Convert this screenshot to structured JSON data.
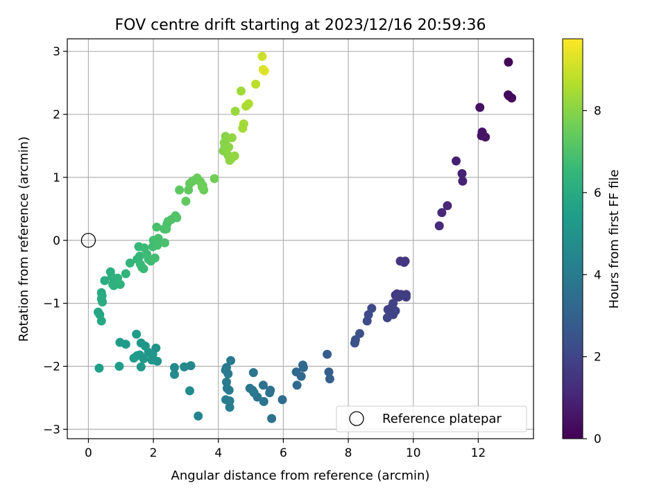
{
  "chart_data": {
    "type": "scatter",
    "title": "FOV centre drift starting at 2023/12/16 20:59:36",
    "xlabel": "Angular distance from reference (arcmin)",
    "ylabel": "Rotation from reference (arcmin)",
    "xlim": [
      -0.65,
      13.7
    ],
    "ylim": [
      -3.15,
      3.2
    ],
    "xticks": [
      0,
      2,
      4,
      6,
      8,
      10,
      12
    ],
    "yticks": [
      -3,
      -2,
      -1,
      0,
      1,
      2,
      3
    ],
    "grid": true,
    "legend": {
      "placement": "lower-right",
      "entries": [
        "Reference platepar"
      ]
    },
    "reference_point": {
      "x": 0,
      "y": 0
    },
    "colorbar": {
      "label": "Hours from first FF file",
      "colormap": "viridis",
      "range": [
        0,
        9.75
      ],
      "ticks": [
        0,
        2,
        4,
        6,
        8
      ]
    },
    "points": [
      [
        12.93,
        2.83,
        0.12
      ],
      [
        12.92,
        2.31,
        0.18
      ],
      [
        13.03,
        2.26,
        0.2
      ],
      [
        12.95,
        2.29,
        0.22
      ],
      [
        12.05,
        2.11,
        0.45
      ],
      [
        12.12,
        1.72,
        0.5
      ],
      [
        12.1,
        1.66,
        0.52
      ],
      [
        12.22,
        1.64,
        0.55
      ],
      [
        11.32,
        1.26,
        0.82
      ],
      [
        11.5,
        1.06,
        0.88
      ],
      [
        11.52,
        0.94,
        0.92
      ],
      [
        11.05,
        0.55,
        1.05
      ],
      [
        10.88,
        0.44,
        1.1
      ],
      [
        10.8,
        0.23,
        1.15
      ],
      [
        9.75,
        -0.33,
        1.45
      ],
      [
        9.6,
        -0.33,
        1.47
      ],
      [
        9.72,
        -0.35,
        1.5
      ],
      [
        9.5,
        -0.85,
        1.65
      ],
      [
        9.45,
        -0.87,
        1.68
      ],
      [
        9.62,
        -0.86,
        1.7
      ],
      [
        9.78,
        -0.86,
        1.72
      ],
      [
        9.78,
        -0.9,
        1.74
      ],
      [
        9.55,
        -0.9,
        1.76
      ],
      [
        9.38,
        -1.0,
        1.85
      ],
      [
        9.3,
        -1.08,
        1.88
      ],
      [
        9.22,
        -1.1,
        1.9
      ],
      [
        9.45,
        -1.12,
        1.92
      ],
      [
        9.38,
        -1.18,
        1.95
      ],
      [
        9.2,
        -1.23,
        1.98
      ],
      [
        8.72,
        -1.08,
        2.1
      ],
      [
        8.62,
        -1.18,
        2.15
      ],
      [
        8.58,
        -1.28,
        2.2
      ],
      [
        8.35,
        -1.48,
        2.35
      ],
      [
        8.22,
        -1.58,
        2.4
      ],
      [
        8.2,
        -1.63,
        2.42
      ],
      [
        7.35,
        -1.81,
        2.8
      ],
      [
        7.4,
        -2.09,
        2.85
      ],
      [
        7.43,
        -2.2,
        2.9
      ],
      [
        6.6,
        -1.98,
        3.2
      ],
      [
        6.62,
        -2.02,
        3.22
      ],
      [
        6.4,
        -2.09,
        3.25
      ],
      [
        6.55,
        -2.16,
        3.28
      ],
      [
        6.42,
        -2.3,
        3.3
      ],
      [
        5.97,
        -2.53,
        3.45
      ],
      [
        5.64,
        -2.83,
        3.55
      ],
      [
        5.6,
        -2.38,
        3.6
      ],
      [
        5.58,
        -2.42,
        3.62
      ],
      [
        5.38,
        -2.3,
        3.65
      ],
      [
        5.4,
        -2.56,
        3.68
      ],
      [
        5.2,
        -2.49,
        3.7
      ],
      [
        5.08,
        -2.1,
        3.75
      ],
      [
        5.05,
        -2.38,
        3.78
      ],
      [
        4.97,
        -2.35,
        3.8
      ],
      [
        5.1,
        -2.42,
        3.82
      ],
      [
        4.38,
        -1.91,
        3.9
      ],
      [
        4.25,
        -2.02,
        3.92
      ],
      [
        4.22,
        -2.06,
        3.95
      ],
      [
        4.3,
        -2.12,
        3.97
      ],
      [
        4.25,
        -2.25,
        4.0
      ],
      [
        4.27,
        -2.35,
        4.02
      ],
      [
        4.33,
        -2.38,
        4.05
      ],
      [
        4.23,
        -2.53,
        4.08
      ],
      [
        4.35,
        -2.55,
        4.1
      ],
      [
        4.35,
        -2.65,
        4.12
      ],
      [
        3.38,
        -2.79,
        4.4
      ],
      [
        3.15,
        -1.99,
        4.5
      ],
      [
        2.95,
        -2.01,
        4.55
      ],
      [
        2.65,
        -2.02,
        4.6
      ],
      [
        2.65,
        -2.13,
        4.62
      ],
      [
        3.12,
        -2.39,
        4.65
      ],
      [
        2.08,
        -1.71,
        5.0
      ],
      [
        2.12,
        -1.92,
        5.05
      ],
      [
        1.98,
        -1.81,
        5.08
      ],
      [
        1.95,
        -1.9,
        5.1
      ],
      [
        1.85,
        -1.78,
        5.12
      ],
      [
        1.62,
        -1.63,
        5.15
      ],
      [
        1.75,
        -1.68,
        5.18
      ],
      [
        1.7,
        -1.88,
        5.2
      ],
      [
        1.58,
        -1.82,
        5.22
      ],
      [
        1.62,
        -2.01,
        5.25
      ],
      [
        1.5,
        -1.83,
        5.27
      ],
      [
        1.4,
        -1.87,
        5.3
      ],
      [
        1.48,
        -1.49,
        5.32
      ],
      [
        1.15,
        -1.65,
        5.35
      ],
      [
        0.97,
        -1.62,
        5.38
      ],
      [
        0.95,
        -2.0,
        5.4
      ],
      [
        0.33,
        -2.03,
        5.45
      ],
      [
        0.3,
        -1.14,
        5.8
      ],
      [
        0.35,
        -1.18,
        5.82
      ],
      [
        0.4,
        -1.28,
        5.85
      ],
      [
        0.4,
        -0.83,
        5.95
      ],
      [
        0.42,
        -0.88,
        5.97
      ],
      [
        0.4,
        -0.93,
        6.0
      ],
      [
        0.43,
        -0.98,
        6.02
      ],
      [
        0.5,
        -0.64,
        6.1
      ],
      [
        0.68,
        -0.5,
        6.15
      ],
      [
        0.72,
        -0.58,
        6.18
      ],
      [
        0.75,
        -0.7,
        6.2
      ],
      [
        0.9,
        -0.68,
        6.22
      ],
      [
        0.78,
        -0.72,
        6.25
      ],
      [
        0.9,
        -0.6,
        6.28
      ],
      [
        0.98,
        -0.7,
        6.3
      ],
      [
        1.15,
        -0.53,
        6.35
      ],
      [
        1.28,
        -0.36,
        6.4
      ],
      [
        1.5,
        -0.3,
        6.5
      ],
      [
        1.55,
        -0.1,
        6.52
      ],
      [
        1.58,
        -0.25,
        6.55
      ],
      [
        1.65,
        -0.43,
        6.58
      ],
      [
        1.6,
        -0.38,
        6.6
      ],
      [
        1.7,
        -0.45,
        6.62
      ],
      [
        1.72,
        -0.12,
        6.65
      ],
      [
        1.8,
        -0.22,
        6.68
      ],
      [
        1.85,
        -0.3,
        6.7
      ],
      [
        1.92,
        -0.33,
        6.72
      ],
      [
        1.98,
        -0.1,
        6.75
      ],
      [
        2.05,
        -0.28,
        6.78
      ],
      [
        2.0,
        0.0,
        6.8
      ],
      [
        2.08,
        -0.05,
        6.82
      ],
      [
        2.12,
        -0.08,
        6.85
      ],
      [
        2.15,
        0.03,
        6.88
      ],
      [
        2.1,
        0.21,
        6.9
      ],
      [
        2.35,
        -0.04,
        6.92
      ],
      [
        2.33,
        0.18,
        6.95
      ],
      [
        2.4,
        0.18,
        6.98
      ],
      [
        2.42,
        0.26,
        7.0
      ],
      [
        2.45,
        0.3,
        7.02
      ],
      [
        2.55,
        0.33,
        7.05
      ],
      [
        2.72,
        0.36,
        7.08
      ],
      [
        2.68,
        0.39,
        7.1
      ],
      [
        2.8,
        0.8,
        7.3
      ],
      [
        3.0,
        0.62,
        7.35
      ],
      [
        3.08,
        0.8,
        7.38
      ],
      [
        3.12,
        0.9,
        7.4
      ],
      [
        3.18,
        0.93,
        7.42
      ],
      [
        3.25,
        0.95,
        7.45
      ],
      [
        3.35,
        0.99,
        7.48
      ],
      [
        3.45,
        0.93,
        7.5
      ],
      [
        3.55,
        0.8,
        7.52
      ],
      [
        3.52,
        0.87,
        7.55
      ],
      [
        3.5,
        0.85,
        7.58
      ],
      [
        3.88,
        0.98,
        7.65
      ],
      [
        4.15,
        1.42,
        7.9
      ],
      [
        4.18,
        1.55,
        7.92
      ],
      [
        4.2,
        1.48,
        7.95
      ],
      [
        4.22,
        1.65,
        7.98
      ],
      [
        4.28,
        1.62,
        8.0
      ],
      [
        4.3,
        1.35,
        8.02
      ],
      [
        4.32,
        1.48,
        8.05
      ],
      [
        4.35,
        1.27,
        8.08
      ],
      [
        4.4,
        1.3,
        8.1
      ],
      [
        4.42,
        1.63,
        8.12
      ],
      [
        4.5,
        1.34,
        8.15
      ],
      [
        4.52,
        2.05,
        8.25
      ],
      [
        4.7,
        2.37,
        8.35
      ],
      [
        4.75,
        1.78,
        8.4
      ],
      [
        4.78,
        1.85,
        8.42
      ],
      [
        4.85,
        2.13,
        8.5
      ],
      [
        4.93,
        2.17,
        8.55
      ],
      [
        5.15,
        2.48,
        8.75
      ],
      [
        5.35,
        2.92,
        9.0
      ],
      [
        5.38,
        2.71,
        9.15
      ],
      [
        5.42,
        2.69,
        9.3
      ]
    ]
  }
}
